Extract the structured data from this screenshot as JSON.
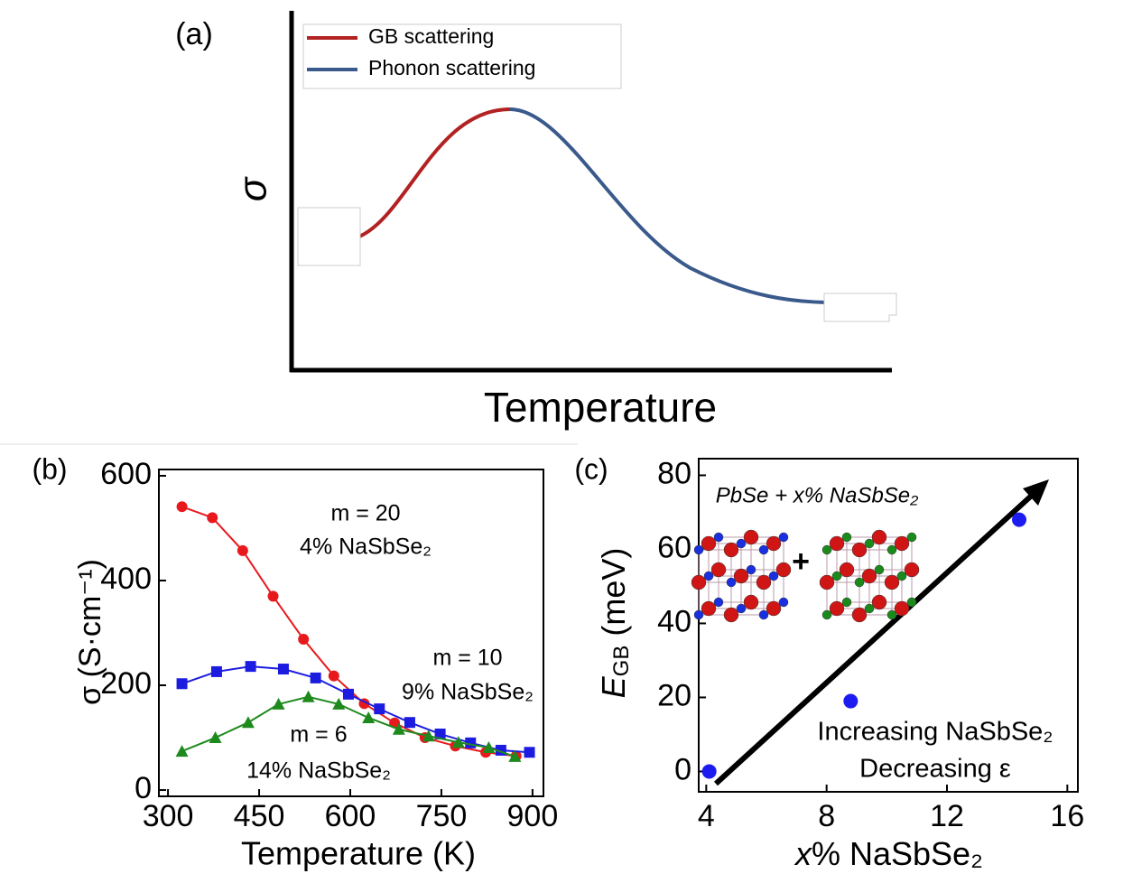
{
  "chart_data": [
    {
      "type": "schematic",
      "label": "(a)",
      "xlabel": "Temperature",
      "ylabel": "σ",
      "legend": "upper left",
      "series": [
        {
          "name": "GB scattering",
          "color": "#b22222"
        },
        {
          "name": "Phonon scattering",
          "color": "#3a5a8c"
        }
      ]
    },
    {
      "type": "line",
      "label": "(b)",
      "xlabel": "Temperature (K)",
      "ylabel": "σ (S·cm⁻¹)",
      "xlim": [
        285,
        918
      ],
      "xticks": [
        300,
        450,
        600,
        750,
        900
      ],
      "ylim": [
        -12,
        612
      ],
      "yticks": [
        0,
        200,
        400,
        600
      ],
      "series": [
        {
          "name": "m = 20",
          "label": "4% NaSbSe₂",
          "color": "#e8191c",
          "marker": "circle",
          "x": [
            323,
            373,
            423,
            473,
            523,
            573,
            623,
            673,
            723,
            773,
            823,
            873
          ],
          "values": [
            541,
            520,
            457,
            370,
            288,
            218,
            165,
            128,
            100,
            84,
            72,
            65
          ]
        },
        {
          "name": "m = 10",
          "label": "9% NaSbSe₂",
          "color": "#1c1ce0",
          "marker": "square",
          "x": [
            323,
            380,
            436,
            490,
            543,
            597,
            648,
            698,
            748,
            798,
            848,
            895
          ],
          "values": [
            203,
            226,
            236,
            231,
            214,
            183,
            155,
            129,
            107,
            90,
            76,
            72
          ]
        },
        {
          "name": "m = 6",
          "label": "14% NaSbSe₂",
          "color": "#1e8a1e",
          "marker": "triangle",
          "x": [
            323,
            378,
            432,
            482,
            531,
            581,
            630,
            680,
            729,
            778,
            828,
            871
          ],
          "values": [
            74,
            100,
            129,
            164,
            178,
            164,
            138,
            116,
            103,
            91,
            81,
            64
          ]
        }
      ]
    },
    {
      "type": "scatter",
      "label": "(c)",
      "xlabel": [
        "x",
        "% NaSbSe₂"
      ],
      "ylabel": [
        "E",
        "GB",
        " (meV)"
      ],
      "xlim": [
        3.75,
        16.35
      ],
      "xticks": [
        4,
        8,
        12,
        16
      ],
      "ylim": [
        -5.5,
        84.5
      ],
      "yticks": [
        0,
        20,
        40,
        60,
        80
      ],
      "x": [
        4.1,
        8.8,
        14.4
      ],
      "values": [
        0,
        19,
        68
      ],
      "color": "#1c1cf0",
      "annotations": [
        "PbSe + x% NaSbSe₂",
        "+",
        "Increasing NaSbSe₂",
        "Decreasing ε"
      ]
    }
  ]
}
